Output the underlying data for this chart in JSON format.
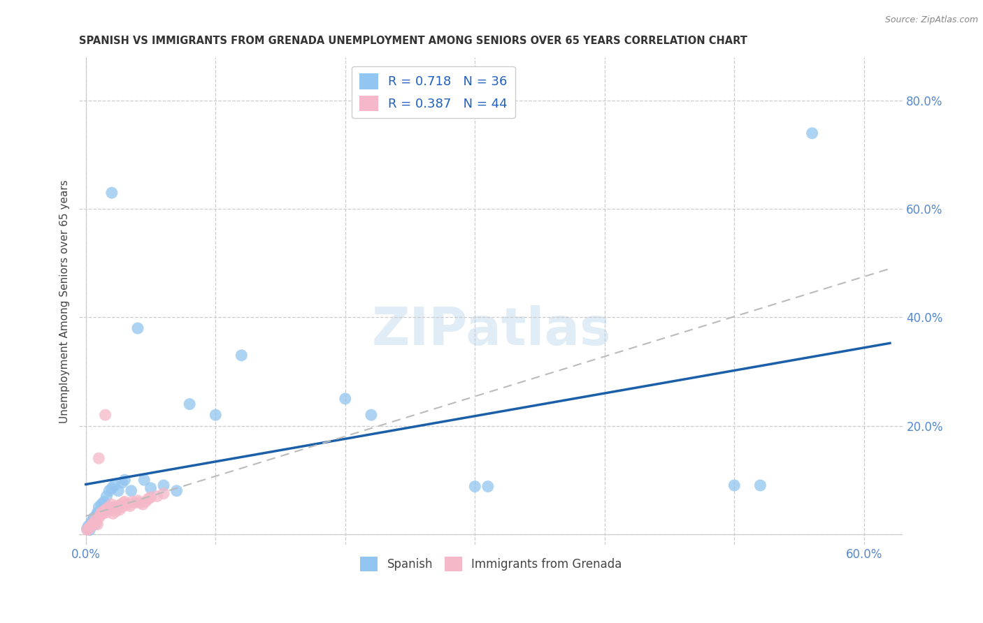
{
  "title": "SPANISH VS IMMIGRANTS FROM GRENADA UNEMPLOYMENT AMONG SENIORS OVER 65 YEARS CORRELATION CHART",
  "source": "Source: ZipAtlas.com",
  "ylabel": "Unemployment Among Seniors over 65 years",
  "xlim": [
    -0.005,
    0.63
  ],
  "ylim": [
    -0.02,
    0.88
  ],
  "xticks": [
    0.0,
    0.1,
    0.2,
    0.3,
    0.4,
    0.5,
    0.6
  ],
  "yticks": [
    0.0,
    0.2,
    0.4,
    0.6,
    0.8
  ],
  "xtick_labels": [
    "0.0%",
    "",
    "",
    "",
    "",
    "",
    "60.0%"
  ],
  "spanish_color": "#92c5f0",
  "grenada_color": "#f5b8c8",
  "trendline_spanish_color": "#1a5fa8",
  "trendline_grenada_color": "#d08898",
  "R_spanish": 0.718,
  "N_spanish": 36,
  "R_grenada": 0.387,
  "N_grenada": 44,
  "watermark": "ZIPatlas",
  "spanish_x": [
    0.001,
    0.002,
    0.003,
    0.004,
    0.005,
    0.006,
    0.007,
    0.008,
    0.009,
    0.01,
    0.012,
    0.014,
    0.016,
    0.018,
    0.02,
    0.022,
    0.025,
    0.028,
    0.03,
    0.035,
    0.04,
    0.045,
    0.05,
    0.06,
    0.07,
    0.08,
    0.1,
    0.12,
    0.2,
    0.22,
    0.3,
    0.31,
    0.5,
    0.52,
    0.56,
    0.02
  ],
  "spanish_y": [
    0.01,
    0.015,
    0.008,
    0.02,
    0.025,
    0.03,
    0.018,
    0.035,
    0.04,
    0.05,
    0.055,
    0.06,
    0.07,
    0.08,
    0.085,
    0.09,
    0.08,
    0.095,
    0.1,
    0.08,
    0.38,
    0.1,
    0.085,
    0.09,
    0.08,
    0.24,
    0.22,
    0.33,
    0.25,
    0.22,
    0.088,
    0.088,
    0.09,
    0.09,
    0.74,
    0.63
  ],
  "grenada_x": [
    0.001,
    0.002,
    0.003,
    0.004,
    0.005,
    0.006,
    0.007,
    0.008,
    0.009,
    0.01,
    0.011,
    0.012,
    0.013,
    0.014,
    0.015,
    0.016,
    0.017,
    0.018,
    0.019,
    0.02,
    0.021,
    0.022,
    0.023,
    0.024,
    0.025,
    0.026,
    0.027,
    0.028,
    0.029,
    0.03,
    0.032,
    0.034,
    0.036,
    0.038,
    0.04,
    0.042,
    0.044,
    0.046,
    0.048,
    0.05,
    0.055,
    0.06,
    0.01,
    0.015
  ],
  "grenada_y": [
    0.008,
    0.01,
    0.012,
    0.015,
    0.018,
    0.02,
    0.025,
    0.022,
    0.018,
    0.03,
    0.035,
    0.04,
    0.038,
    0.042,
    0.045,
    0.04,
    0.048,
    0.05,
    0.045,
    0.055,
    0.038,
    0.05,
    0.042,
    0.048,
    0.052,
    0.045,
    0.055,
    0.05,
    0.058,
    0.06,
    0.055,
    0.052,
    0.06,
    0.058,
    0.062,
    0.058,
    0.055,
    0.06,
    0.065,
    0.068,
    0.07,
    0.075,
    0.14,
    0.22
  ]
}
